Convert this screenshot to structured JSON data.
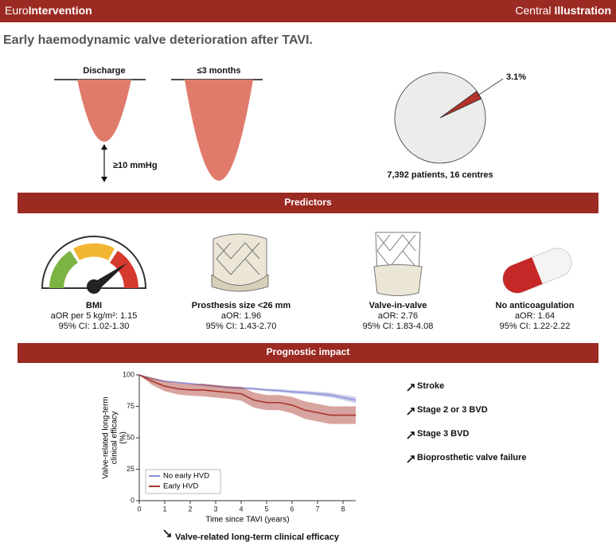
{
  "header": {
    "brand_light": "Euro",
    "brand_bold": "Intervention",
    "label_light": "Central",
    "label_bold": "Illustration"
  },
  "title": "Early haemodynamic valve deterioration after TAVI.",
  "gradient": {
    "discharge": "Discharge",
    "later": "≤3 months",
    "increase": "≥10 mmHg"
  },
  "predictors": {
    "title": "Predictors",
    "items": [
      {
        "name": "BMI",
        "lines": [
          "aOR per 5 kg/m²: 1.15",
          "95% CI: 1.02-1.30"
        ]
      },
      {
        "name": "Prosthesis size <26 mm",
        "lines": [
          "aOR: 1.96",
          "95% CI: 1.43-2.70"
        ]
      },
      {
        "name": "Valve-in-valve",
        "lines": [
          "aOR: 2.76",
          "95% CI: 1.83-4.08"
        ]
      },
      {
        "name": "No anticoagulation",
        "lines": [
          "aOR: 1.64",
          "95% CI: 1.22-2.22"
        ]
      }
    ]
  },
  "prognostic": {
    "title": "Prognostic impact",
    "increased": [
      "Stroke",
      "Stage 2 or 3 BVD",
      "Stage 3 BVD",
      "Bioprosthetic valve failure"
    ],
    "decreased": "Valve-related long-term clinical efficacy"
  },
  "chart_data": [
    {
      "type": "pie",
      "values": [
        3.1,
        96.9
      ],
      "value_labels": [
        "3.1%",
        null
      ],
      "colors": [
        "#b5322a",
        "#ececec"
      ],
      "caption": "7,392 patients, 16 centres"
    },
    {
      "type": "line",
      "xlabel": "Time since TAVI (years)",
      "ylabel": [
        "Valve-related long-term",
        "clinical efficacy",
        "(%)"
      ],
      "x": [
        0,
        0.5,
        1,
        1.5,
        2,
        2.5,
        3,
        3.5,
        4,
        4.5,
        5,
        5.5,
        6,
        6.5,
        7,
        7.5,
        8,
        8.5
      ],
      "xlim": [
        0,
        8.5
      ],
      "xticks": [
        0,
        1,
        2,
        3,
        4,
        5,
        6,
        7,
        8
      ],
      "ylim": [
        0,
        100
      ],
      "yticks": [
        0,
        25,
        50,
        75,
        100
      ],
      "legend": "lower left",
      "series": [
        {
          "name": "No early HVD",
          "color": "#8f93d6",
          "values": [
            100,
            97,
            95,
            94,
            93,
            92,
            91,
            90,
            89.5,
            89,
            88,
            87.5,
            86.5,
            86,
            85,
            84,
            82,
            80
          ],
          "lower": [
            100,
            96.5,
            94.5,
            93.4,
            92.3,
            91.3,
            90.2,
            89.2,
            88.6,
            88,
            87,
            86.3,
            85.2,
            84.6,
            83.4,
            82.2,
            80,
            77.5
          ],
          "upper": [
            100,
            97.5,
            95.5,
            94.6,
            93.7,
            92.7,
            91.8,
            90.8,
            90.4,
            90,
            89,
            88.7,
            87.8,
            87.4,
            86.6,
            85.8,
            84,
            82.5
          ]
        },
        {
          "name": "Early HVD",
          "color": "#a8352c",
          "values": [
            100,
            95,
            91,
            89,
            88,
            88,
            87,
            86,
            85,
            80,
            78,
            78,
            76,
            72,
            70,
            68,
            68,
            68
          ],
          "lower": [
            100,
            92,
            87,
            84.5,
            83.5,
            83,
            82,
            81,
            79.5,
            74,
            72,
            72,
            69.5,
            65,
            63,
            61,
            61,
            61
          ],
          "upper": [
            100,
            98,
            95,
            93.5,
            92.5,
            93,
            92,
            91,
            90.5,
            86,
            84,
            84,
            82.5,
            79,
            77,
            75,
            75,
            75
          ]
        }
      ]
    }
  ]
}
